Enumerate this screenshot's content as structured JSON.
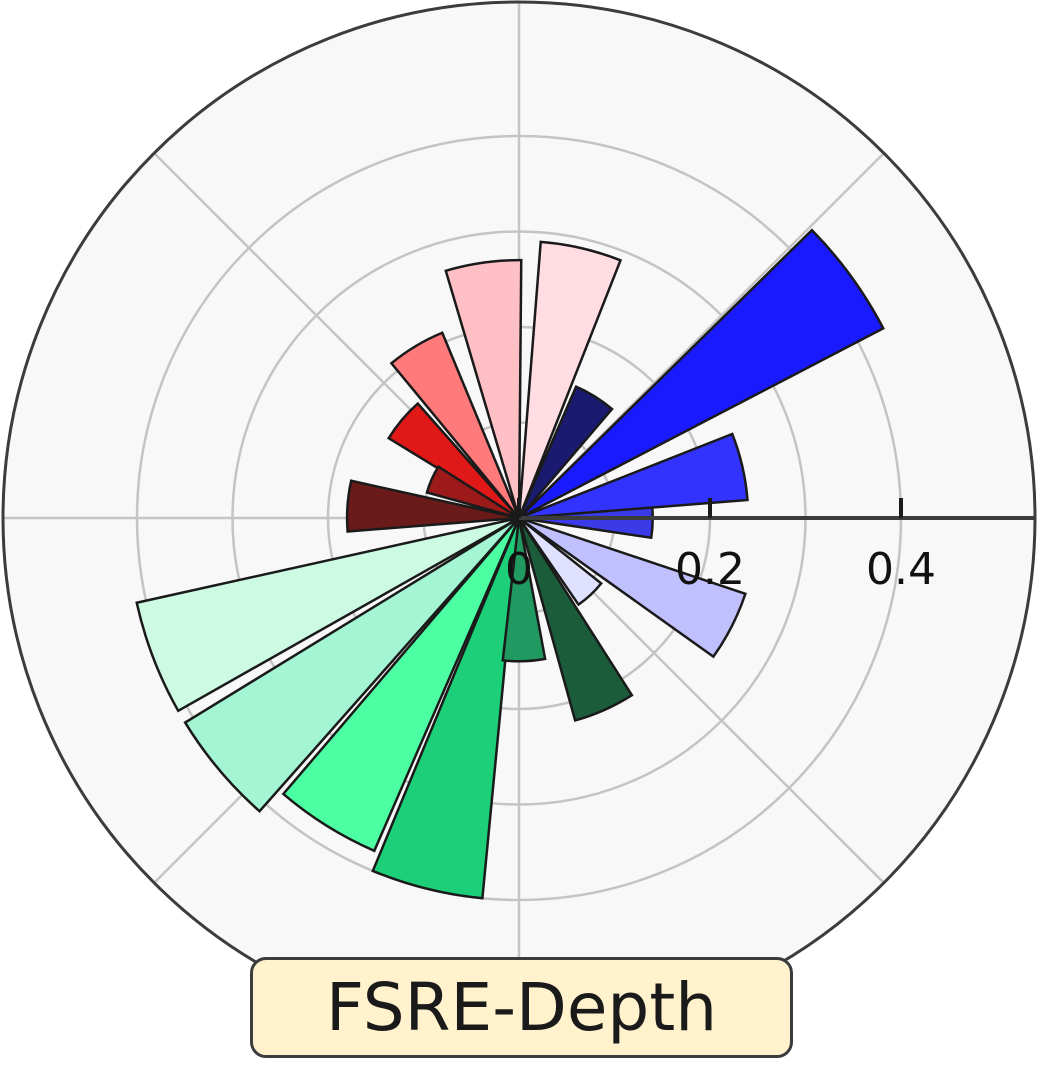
{
  "chart_data": {
    "type": "polar-bar",
    "title": "FSRE-Depth",
    "radial_ticks": [
      "0",
      "0.2",
      "0.4"
    ],
    "r_range": [
      0,
      0.54
    ],
    "bars": [
      {
        "angle_deg": 0,
        "value": 0.14,
        "color": "#3a3ae8"
      },
      {
        "angle_deg": 13,
        "value": 0.24,
        "color": "#3333ff"
      },
      {
        "angle_deg": 36,
        "value": 0.43,
        "color": "#1a1aff"
      },
      {
        "angle_deg": 58,
        "value": 0.15,
        "color": "#1a1a70"
      },
      {
        "angle_deg": 77,
        "value": 0.29,
        "color": "#ffdde2"
      },
      {
        "angle_deg": 98,
        "value": 0.27,
        "color": "#ffc0c5"
      },
      {
        "angle_deg": 121,
        "value": 0.21,
        "color": "#ff7a7a"
      },
      {
        "angle_deg": 140,
        "value": 0.16,
        "color": "#e01818"
      },
      {
        "angle_deg": 156,
        "value": 0.1,
        "color": "#9c1a1a"
      },
      {
        "angle_deg": 176,
        "value": 0.18,
        "color": "#6b1a1a"
      },
      {
        "angle_deg": 201,
        "value": 0.41,
        "color": "#ccfae3"
      },
      {
        "angle_deg": 220,
        "value": 0.41,
        "color": "#a3f5d3"
      },
      {
        "angle_deg": 238,
        "value": 0.38,
        "color": "#4dffa3"
      },
      {
        "angle_deg": 256,
        "value": 0.4,
        "color": "#1ccf78"
      },
      {
        "angle_deg": 272,
        "value": 0.15,
        "color": "#209a60"
      },
      {
        "angle_deg": 294,
        "value": 0.22,
        "color": "#1b5c3a"
      },
      {
        "angle_deg": 313,
        "value": 0.11,
        "color": "#e0e0ff"
      },
      {
        "angle_deg": 333,
        "value": 0.25,
        "color": "#c0c0ff"
      }
    ]
  }
}
